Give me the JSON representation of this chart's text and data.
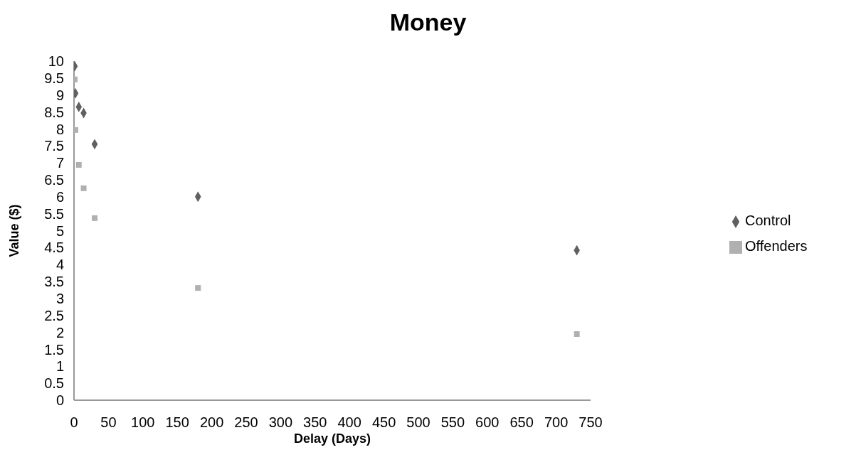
{
  "chart_data": {
    "type": "scatter",
    "title": "Money",
    "xlabel": "Delay (Days)",
    "ylabel": "Value ($)",
    "xlim": [
      0,
      750
    ],
    "xticks": [
      0,
      50,
      100,
      150,
      200,
      250,
      300,
      350,
      400,
      450,
      500,
      550,
      600,
      650,
      700,
      750
    ],
    "ylim": [
      0,
      10
    ],
    "yticks": [
      0,
      0.5,
      1,
      1.5,
      2,
      2.5,
      3,
      3.5,
      4,
      4.5,
      5,
      5.5,
      6,
      6.5,
      7,
      7.5,
      8,
      8.5,
      9,
      9.5,
      10
    ],
    "grid": false,
    "legend": "right",
    "series": [
      {
        "name": "Control",
        "color": "#606060",
        "marker": "diamond",
        "x": [
          1,
          2,
          7,
          14,
          30,
          180,
          730
        ],
        "values": [
          9.85,
          9.05,
          8.65,
          8.47,
          7.55,
          6.0,
          4.42
        ]
      },
      {
        "name": "Offenders",
        "color": "#b0b0b0",
        "marker": "square",
        "x": [
          1,
          2,
          7,
          14,
          30,
          180,
          730
        ],
        "values": [
          9.46,
          7.97,
          6.94,
          6.25,
          5.37,
          3.31,
          1.95
        ]
      }
    ]
  }
}
